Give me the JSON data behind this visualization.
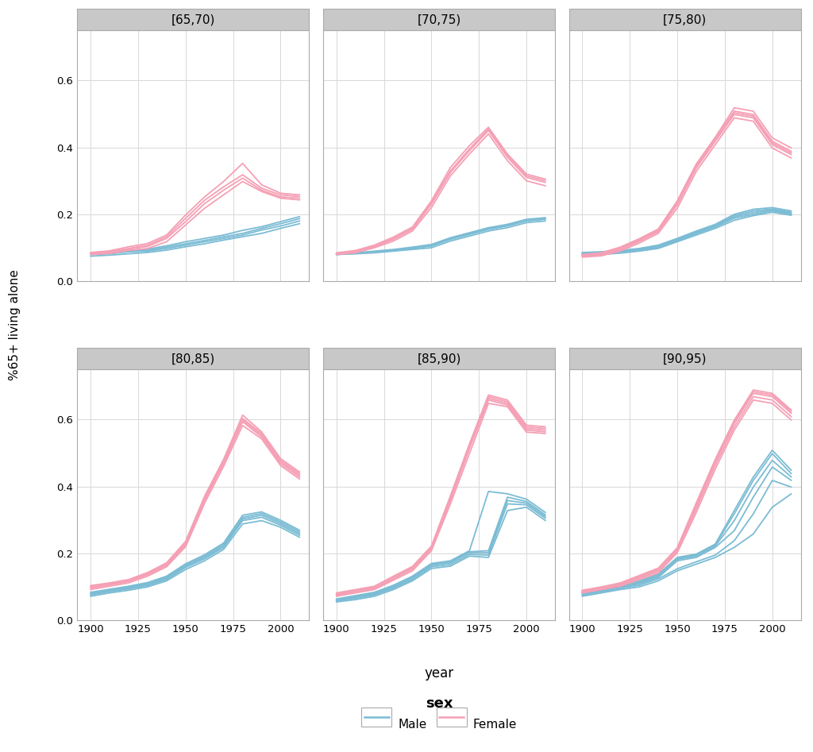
{
  "panels": [
    "[65,70)",
    "[70,75)",
    "[75,80)",
    "[80,85)",
    "[85,90)",
    "[90,95)"
  ],
  "years": [
    1900,
    1910,
    1920,
    1930,
    1940,
    1950,
    1960,
    1970,
    1980,
    1990,
    2000,
    2010
  ],
  "male_color": "#7BBCD4",
  "female_color": "#F5A0B5",
  "background_color": "#FFFFFF",
  "panel_header_color": "#C8C8C8",
  "plot_bg_color": "#FFFFFF",
  "grid_color": "#D8D8D8",
  "ylabel": "%65+ living alone",
  "xlabel": "year",
  "legend_title": "sex",
  "legend_male": "Male",
  "legend_female": "Female",
  "ylim": [
    0.0,
    0.75
  ],
  "yticks": [
    0.0,
    0.2,
    0.4,
    0.6
  ],
  "xticks": [
    1900,
    1925,
    1950,
    1975,
    2000
  ],
  "spine_color": "#AAAAAA",
  "data": {
    "[65,70)": {
      "male_lines": [
        [
          0.075,
          0.078,
          0.082,
          0.086,
          0.093,
          0.103,
          0.112,
          0.123,
          0.133,
          0.143,
          0.158,
          0.172
        ],
        [
          0.08,
          0.082,
          0.088,
          0.09,
          0.098,
          0.108,
          0.118,
          0.128,
          0.138,
          0.153,
          0.165,
          0.18
        ],
        [
          0.082,
          0.084,
          0.09,
          0.093,
          0.102,
          0.112,
          0.122,
          0.133,
          0.143,
          0.158,
          0.172,
          0.187
        ],
        [
          0.083,
          0.086,
          0.092,
          0.096,
          0.106,
          0.118,
          0.128,
          0.138,
          0.152,
          0.163,
          0.178,
          0.193
        ]
      ],
      "female_lines": [
        [
          0.08,
          0.083,
          0.092,
          0.098,
          0.118,
          0.168,
          0.218,
          0.258,
          0.298,
          0.268,
          0.248,
          0.243
        ],
        [
          0.082,
          0.086,
          0.096,
          0.104,
          0.128,
          0.178,
          0.232,
          0.272,
          0.308,
          0.272,
          0.252,
          0.248
        ],
        [
          0.085,
          0.089,
          0.098,
          0.108,
          0.133,
          0.188,
          0.242,
          0.282,
          0.318,
          0.278,
          0.258,
          0.253
        ],
        [
          0.086,
          0.091,
          0.103,
          0.113,
          0.138,
          0.198,
          0.252,
          0.298,
          0.352,
          0.288,
          0.263,
          0.258
        ]
      ]
    },
    "[70,75)": {
      "male_lines": [
        [
          0.08,
          0.082,
          0.085,
          0.09,
          0.095,
          0.1,
          0.12,
          0.135,
          0.15,
          0.16,
          0.175,
          0.18
        ],
        [
          0.08,
          0.083,
          0.087,
          0.092,
          0.098,
          0.105,
          0.125,
          0.14,
          0.155,
          0.165,
          0.18,
          0.185
        ],
        [
          0.08,
          0.084,
          0.088,
          0.093,
          0.1,
          0.107,
          0.128,
          0.142,
          0.158,
          0.168,
          0.183,
          0.188
        ],
        [
          0.082,
          0.085,
          0.09,
          0.095,
          0.102,
          0.11,
          0.13,
          0.145,
          0.16,
          0.17,
          0.185,
          0.19
        ]
      ],
      "female_lines": [
        [
          0.08,
          0.085,
          0.1,
          0.12,
          0.15,
          0.22,
          0.315,
          0.38,
          0.44,
          0.36,
          0.3,
          0.285
        ],
        [
          0.082,
          0.088,
          0.103,
          0.125,
          0.155,
          0.23,
          0.325,
          0.39,
          0.45,
          0.37,
          0.31,
          0.295
        ],
        [
          0.083,
          0.09,
          0.105,
          0.128,
          0.158,
          0.235,
          0.33,
          0.395,
          0.455,
          0.375,
          0.315,
          0.3
        ],
        [
          0.085,
          0.092,
          0.108,
          0.132,
          0.162,
          0.24,
          0.34,
          0.405,
          0.46,
          0.38,
          0.32,
          0.305
        ]
      ]
    },
    "[75,80)": {
      "male_lines": [
        [
          0.078,
          0.08,
          0.084,
          0.09,
          0.098,
          0.118,
          0.138,
          0.158,
          0.182,
          0.196,
          0.206,
          0.197
        ],
        [
          0.08,
          0.082,
          0.086,
          0.092,
          0.1,
          0.12,
          0.142,
          0.162,
          0.188,
          0.2,
          0.21,
          0.2
        ],
        [
          0.082,
          0.084,
          0.088,
          0.094,
          0.103,
          0.123,
          0.145,
          0.165,
          0.192,
          0.205,
          0.213,
          0.203
        ],
        [
          0.084,
          0.086,
          0.09,
          0.096,
          0.106,
          0.126,
          0.148,
          0.168,
          0.196,
          0.21,
          0.216,
          0.206
        ],
        [
          0.086,
          0.088,
          0.092,
          0.098,
          0.108,
          0.128,
          0.15,
          0.17,
          0.2,
          0.215,
          0.22,
          0.21
        ]
      ],
      "female_lines": [
        [
          0.072,
          0.076,
          0.09,
          0.114,
          0.143,
          0.218,
          0.328,
          0.408,
          0.488,
          0.478,
          0.398,
          0.368
        ],
        [
          0.075,
          0.079,
          0.094,
          0.119,
          0.148,
          0.228,
          0.338,
          0.418,
          0.498,
          0.488,
          0.408,
          0.378
        ],
        [
          0.077,
          0.081,
          0.096,
          0.122,
          0.151,
          0.233,
          0.343,
          0.423,
          0.503,
          0.493,
          0.413,
          0.383
        ],
        [
          0.079,
          0.083,
          0.099,
          0.125,
          0.154,
          0.238,
          0.348,
          0.428,
          0.508,
          0.498,
          0.418,
          0.388
        ],
        [
          0.08,
          0.085,
          0.102,
          0.127,
          0.156,
          0.24,
          0.35,
          0.43,
          0.518,
          0.508,
          0.428,
          0.398
        ]
      ]
    },
    "[80,85)": {
      "male_lines": [
        [
          0.072,
          0.082,
          0.09,
          0.1,
          0.118,
          0.152,
          0.178,
          0.212,
          0.288,
          0.298,
          0.278,
          0.248
        ],
        [
          0.076,
          0.086,
          0.094,
          0.104,
          0.122,
          0.158,
          0.184,
          0.218,
          0.298,
          0.308,
          0.284,
          0.254
        ],
        [
          0.079,
          0.088,
          0.097,
          0.107,
          0.126,
          0.162,
          0.188,
          0.222,
          0.303,
          0.314,
          0.289,
          0.259
        ],
        [
          0.081,
          0.09,
          0.099,
          0.11,
          0.129,
          0.165,
          0.192,
          0.227,
          0.308,
          0.319,
          0.294,
          0.264
        ],
        [
          0.084,
          0.093,
          0.102,
          0.113,
          0.132,
          0.169,
          0.196,
          0.231,
          0.314,
          0.324,
          0.299,
          0.269
        ]
      ],
      "female_lines": [
        [
          0.092,
          0.102,
          0.112,
          0.132,
          0.16,
          0.22,
          0.35,
          0.46,
          0.582,
          0.542,
          0.462,
          0.422
        ],
        [
          0.096,
          0.106,
          0.116,
          0.136,
          0.164,
          0.225,
          0.358,
          0.468,
          0.593,
          0.548,
          0.468,
          0.428
        ],
        [
          0.099,
          0.108,
          0.118,
          0.138,
          0.167,
          0.229,
          0.363,
          0.473,
          0.598,
          0.553,
          0.473,
          0.433
        ],
        [
          0.102,
          0.11,
          0.12,
          0.14,
          0.169,
          0.232,
          0.367,
          0.477,
          0.603,
          0.558,
          0.478,
          0.438
        ],
        [
          0.104,
          0.112,
          0.122,
          0.143,
          0.172,
          0.236,
          0.371,
          0.481,
          0.613,
          0.563,
          0.483,
          0.443
        ]
      ]
    },
    "[85,90)": {
      "male_lines": [
        [
          0.055,
          0.062,
          0.072,
          0.092,
          0.118,
          0.155,
          0.162,
          0.192,
          0.188,
          0.328,
          0.338,
          0.298
        ],
        [
          0.058,
          0.066,
          0.076,
          0.096,
          0.122,
          0.16,
          0.167,
          0.197,
          0.195,
          0.348,
          0.345,
          0.305
        ],
        [
          0.06,
          0.069,
          0.079,
          0.099,
          0.126,
          0.164,
          0.172,
          0.202,
          0.202,
          0.358,
          0.35,
          0.31
        ],
        [
          0.062,
          0.071,
          0.081,
          0.102,
          0.129,
          0.167,
          0.175,
          0.205,
          0.208,
          0.368,
          0.355,
          0.315
        ],
        [
          0.064,
          0.074,
          0.084,
          0.105,
          0.132,
          0.17,
          0.178,
          0.208,
          0.385,
          0.378,
          0.362,
          0.322
        ]
      ],
      "female_lines": [
        [
          0.072,
          0.082,
          0.092,
          0.12,
          0.148,
          0.208,
          0.348,
          0.498,
          0.648,
          0.638,
          0.562,
          0.558
        ],
        [
          0.075,
          0.085,
          0.095,
          0.124,
          0.153,
          0.213,
          0.358,
          0.513,
          0.658,
          0.643,
          0.568,
          0.563
        ],
        [
          0.078,
          0.088,
          0.098,
          0.127,
          0.156,
          0.217,
          0.363,
          0.518,
          0.663,
          0.648,
          0.573,
          0.568
        ],
        [
          0.08,
          0.09,
          0.1,
          0.129,
          0.158,
          0.219,
          0.368,
          0.523,
          0.668,
          0.653,
          0.578,
          0.573
        ],
        [
          0.082,
          0.092,
          0.102,
          0.132,
          0.161,
          0.222,
          0.372,
          0.527,
          0.673,
          0.658,
          0.583,
          0.578
        ]
      ]
    },
    "[90,95)": {
      "male_lines": [
        [
          0.072,
          0.082,
          0.092,
          0.1,
          0.118,
          0.148,
          0.168,
          0.188,
          0.218,
          0.258,
          0.338,
          0.378
        ],
        [
          0.075,
          0.085,
          0.096,
          0.105,
          0.124,
          0.154,
          0.175,
          0.195,
          0.238,
          0.318,
          0.418,
          0.398
        ],
        [
          0.078,
          0.088,
          0.099,
          0.109,
          0.128,
          0.178,
          0.188,
          0.218,
          0.268,
          0.368,
          0.458,
          0.418
        ],
        [
          0.08,
          0.09,
          0.102,
          0.112,
          0.132,
          0.182,
          0.192,
          0.222,
          0.298,
          0.398,
          0.478,
          0.428
        ],
        [
          0.083,
          0.093,
          0.105,
          0.115,
          0.135,
          0.185,
          0.195,
          0.225,
          0.318,
          0.418,
          0.498,
          0.438
        ],
        [
          0.086,
          0.097,
          0.108,
          0.118,
          0.138,
          0.188,
          0.198,
          0.228,
          0.328,
          0.428,
          0.508,
          0.448
        ]
      ],
      "female_lines": [
        [
          0.082,
          0.092,
          0.102,
          0.122,
          0.142,
          0.202,
          0.322,
          0.452,
          0.568,
          0.658,
          0.648,
          0.598
        ],
        [
          0.084,
          0.094,
          0.105,
          0.126,
          0.147,
          0.207,
          0.332,
          0.463,
          0.578,
          0.668,
          0.658,
          0.608
        ],
        [
          0.086,
          0.096,
          0.108,
          0.129,
          0.151,
          0.212,
          0.341,
          0.472,
          0.588,
          0.678,
          0.668,
          0.618
        ],
        [
          0.088,
          0.098,
          0.11,
          0.131,
          0.153,
          0.214,
          0.346,
          0.476,
          0.593,
          0.683,
          0.673,
          0.623
        ],
        [
          0.09,
          0.1,
          0.112,
          0.134,
          0.156,
          0.217,
          0.351,
          0.481,
          0.598,
          0.688,
          0.678,
          0.628
        ]
      ]
    }
  }
}
